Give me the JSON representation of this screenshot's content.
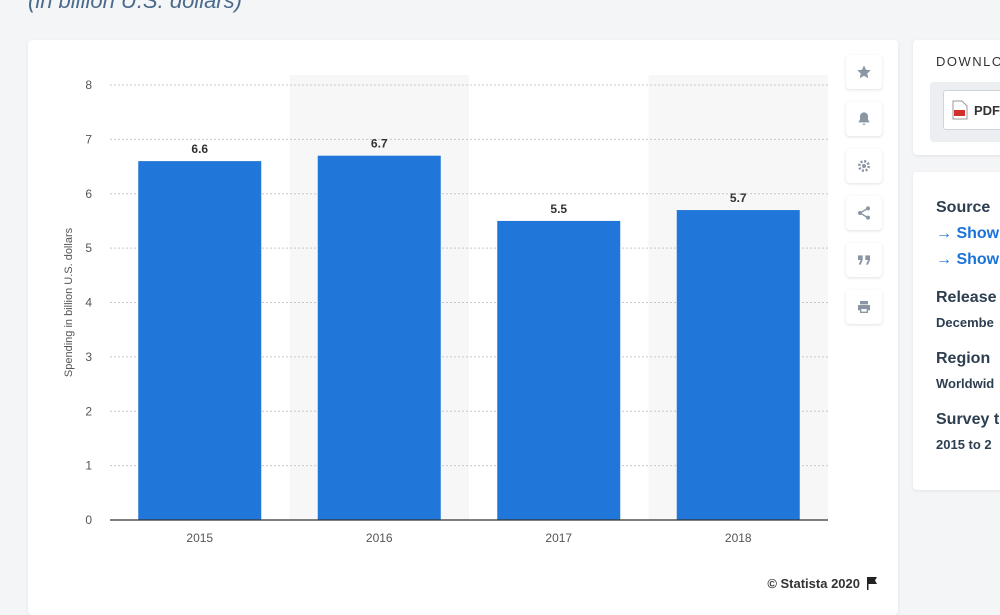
{
  "header": {
    "subtitle": "(in billion U.S. dollars)"
  },
  "colors": {
    "bar": "#2176d9",
    "band": "#f7f7f7",
    "grid": "#c8c8c8",
    "axis_text": "#555555"
  },
  "toolbar": {
    "buttons": [
      {
        "name": "star-icon"
      },
      {
        "name": "bell-icon"
      },
      {
        "name": "gear-icon"
      },
      {
        "name": "share-icon"
      },
      {
        "name": "quote-icon"
      },
      {
        "name": "print-icon"
      }
    ]
  },
  "footer": {
    "copyright": "© Statista 2020"
  },
  "sidebar": {
    "download": {
      "title": "DOWNLO",
      "pdf_label": "PDF"
    },
    "source": {
      "label": "Source",
      "link1": "→ Show",
      "link2": "→ Show"
    },
    "release": {
      "label": "Release",
      "value": "Decembe"
    },
    "region": {
      "label": "Region",
      "value": "Worldwid"
    },
    "survey": {
      "label": "Survey t",
      "value": "2015 to 2"
    }
  },
  "chart_data": {
    "type": "bar",
    "categories": [
      "2015",
      "2016",
      "2017",
      "2018"
    ],
    "values": [
      6.6,
      6.7,
      5.5,
      5.7
    ],
    "ylabel": "Spending in billion U.S. dollars",
    "xlabel": "",
    "ylim": [
      0,
      8
    ],
    "yticks": [
      0,
      1,
      2,
      3,
      4,
      5,
      6,
      7,
      8
    ],
    "grid": true,
    "data_labels": true
  }
}
